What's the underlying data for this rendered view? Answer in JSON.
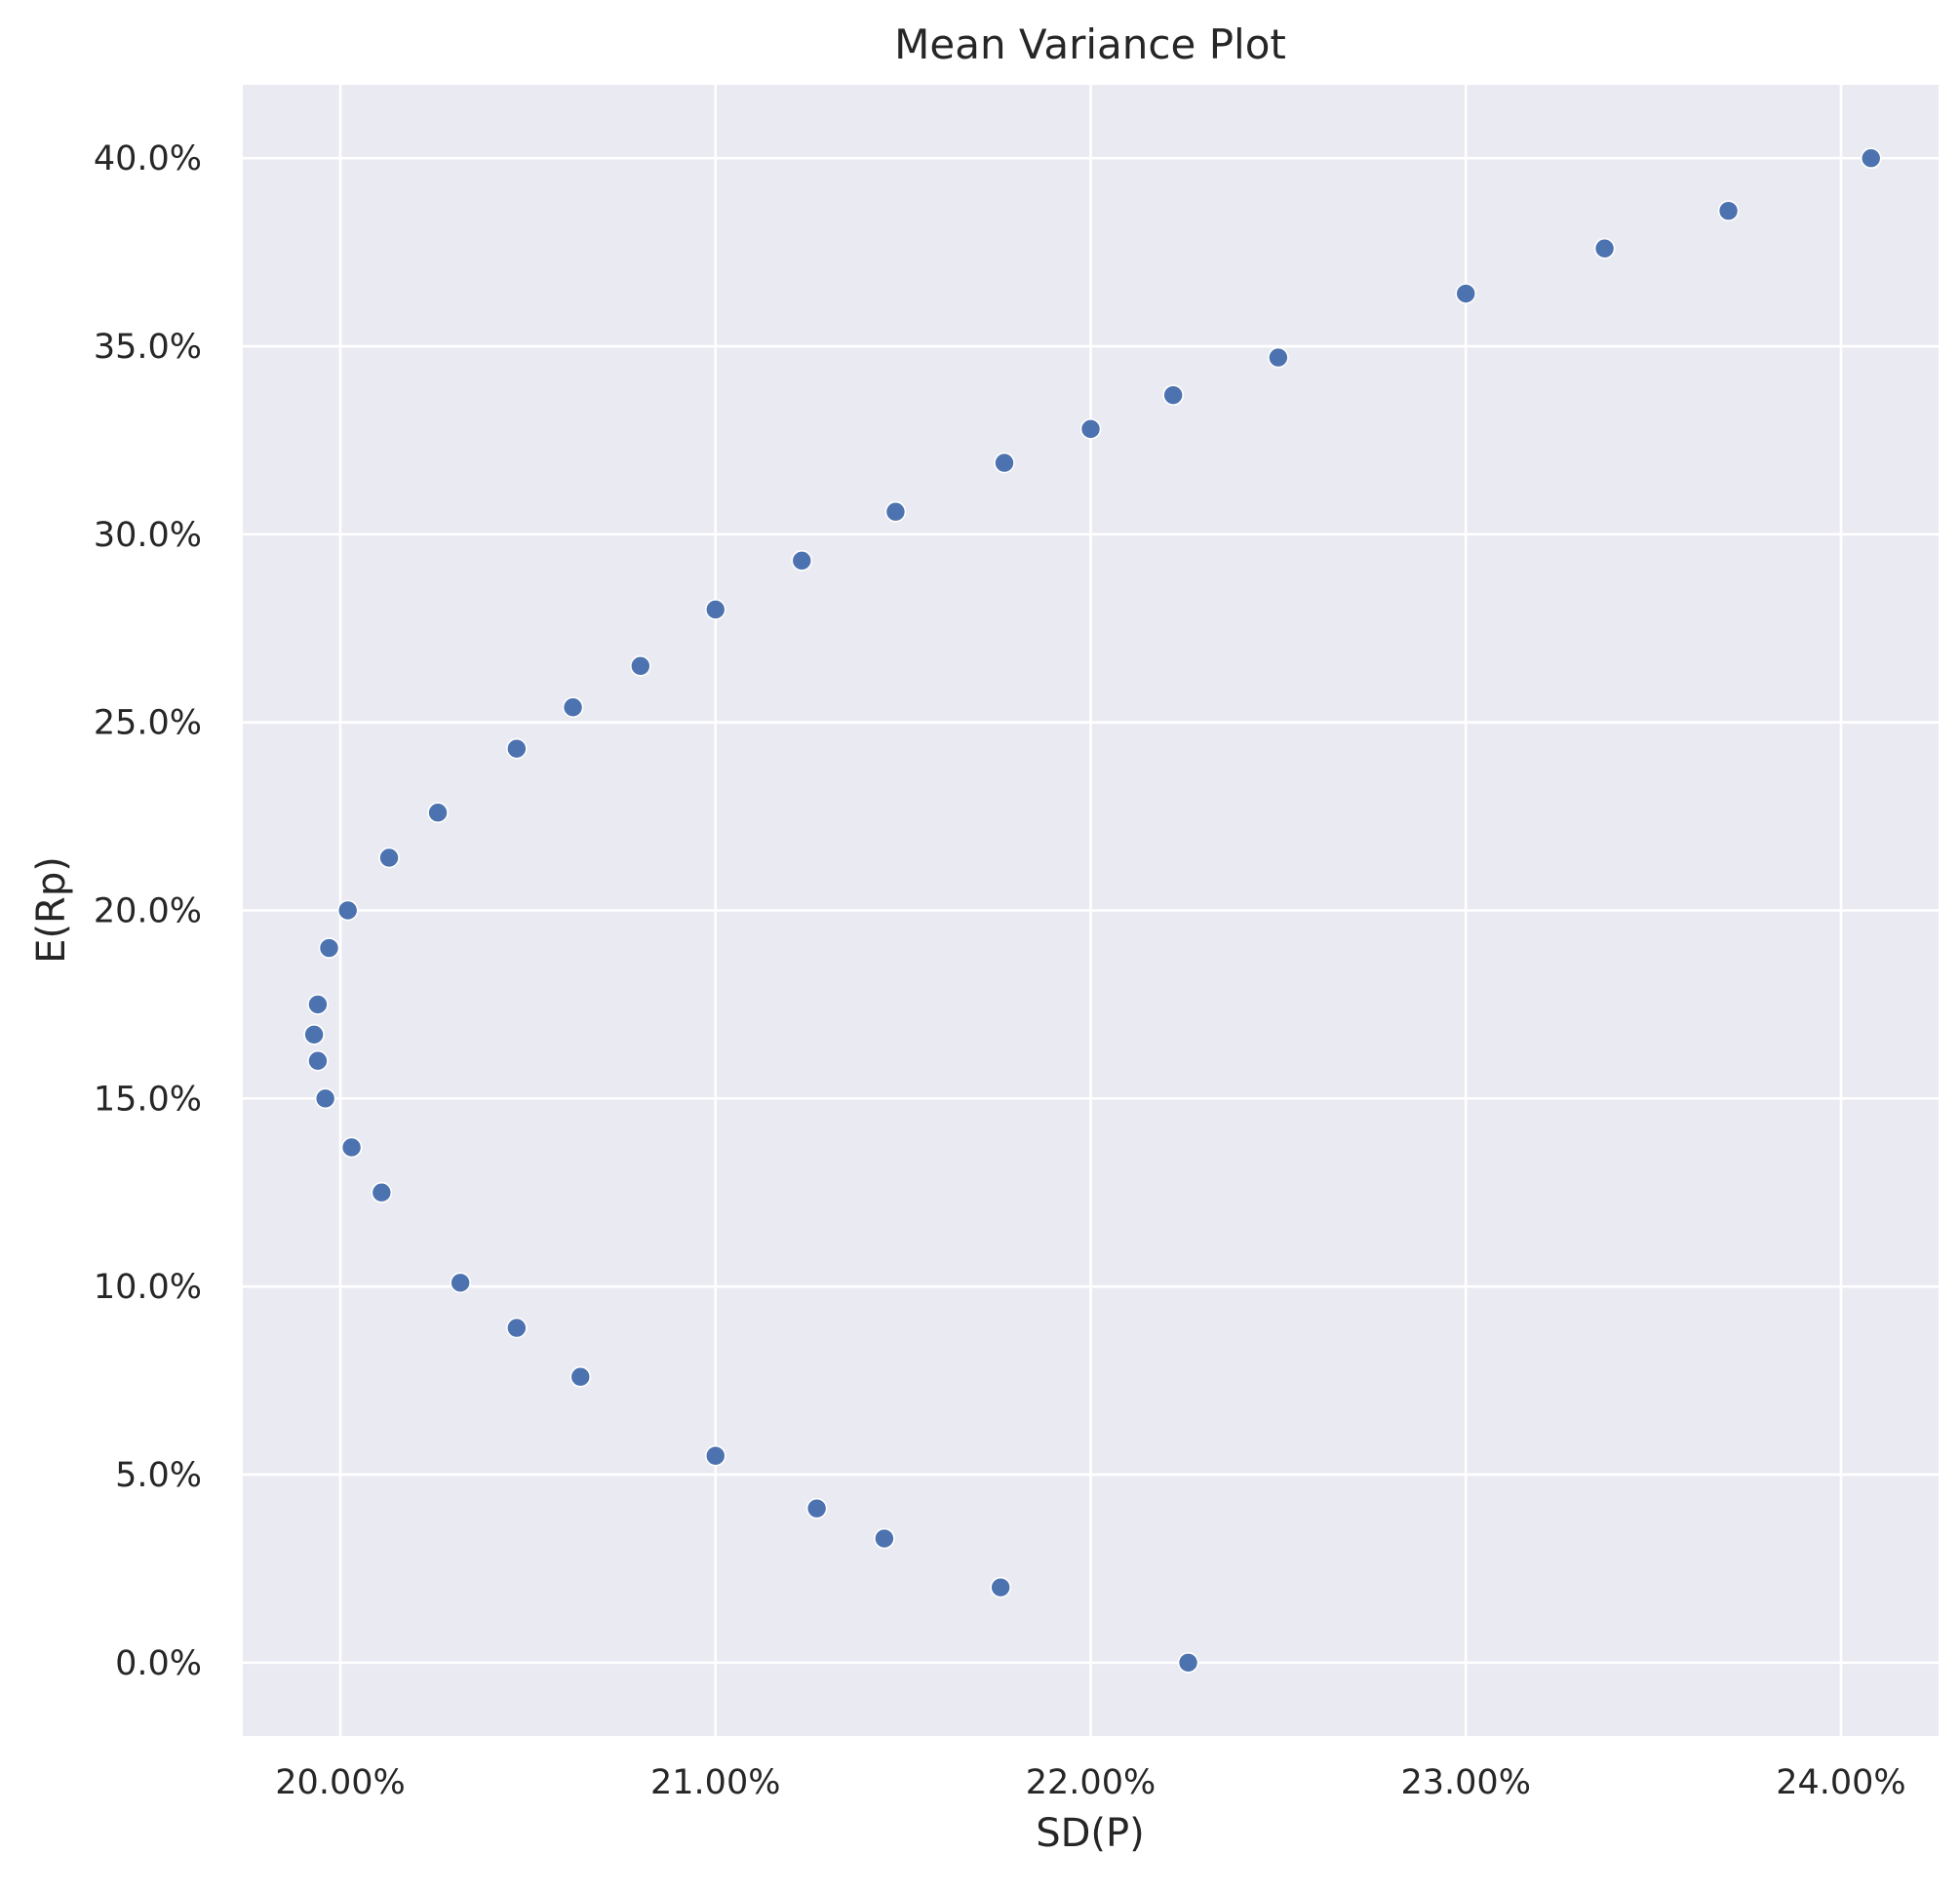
{
  "chart_data": {
    "type": "scatter",
    "title": "Mean Variance Plot",
    "xlabel": "SD(P)",
    "ylabel": "E(Rp)",
    "xlim": [
      0.1974,
      0.2426
    ],
    "ylim": [
      -0.0195,
      0.4195
    ],
    "grid": true,
    "background_color": "#EAEAF2",
    "marker_color": "#4C72B0",
    "x_ticks": [
      {
        "value": 0.2,
        "label": "20.00%"
      },
      {
        "value": 0.21,
        "label": "21.00%"
      },
      {
        "value": 0.22,
        "label": "22.00%"
      },
      {
        "value": 0.23,
        "label": "23.00%"
      },
      {
        "value": 0.24,
        "label": "24.00%"
      }
    ],
    "y_ticks": [
      {
        "value": 0.0,
        "label": "0.0%"
      },
      {
        "value": 0.05,
        "label": "5.0%"
      },
      {
        "value": 0.1,
        "label": "10.0%"
      },
      {
        "value": 0.15,
        "label": "15.0%"
      },
      {
        "value": 0.2,
        "label": "20.0%"
      },
      {
        "value": 0.25,
        "label": "25.0%"
      },
      {
        "value": 0.3,
        "label": "30.0%"
      },
      {
        "value": 0.35,
        "label": "35.0%"
      },
      {
        "value": 0.4,
        "label": "40.0%"
      }
    ],
    "series": [
      {
        "points": [
          {
            "x": 0.2226,
            "y": 0.0
          },
          {
            "x": 0.2176,
            "y": 0.02
          },
          {
            "x": 0.2145,
            "y": 0.033
          },
          {
            "x": 0.2127,
            "y": 0.041
          },
          {
            "x": 0.21,
            "y": 0.055
          },
          {
            "x": 0.2064,
            "y": 0.076
          },
          {
            "x": 0.2047,
            "y": 0.089
          },
          {
            "x": 0.2032,
            "y": 0.101
          },
          {
            "x": 0.2011,
            "y": 0.125
          },
          {
            "x": 0.2003,
            "y": 0.137
          },
          {
            "x": 0.1996,
            "y": 0.15
          },
          {
            "x": 0.1994,
            "y": 0.16
          },
          {
            "x": 0.1993,
            "y": 0.167
          },
          {
            "x": 0.1994,
            "y": 0.175
          },
          {
            "x": 0.1997,
            "y": 0.19
          },
          {
            "x": 0.2002,
            "y": 0.2
          },
          {
            "x": 0.2013,
            "y": 0.214
          },
          {
            "x": 0.2026,
            "y": 0.226
          },
          {
            "x": 0.2047,
            "y": 0.243
          },
          {
            "x": 0.2062,
            "y": 0.254
          },
          {
            "x": 0.208,
            "y": 0.265
          },
          {
            "x": 0.21,
            "y": 0.28
          },
          {
            "x": 0.2123,
            "y": 0.293
          },
          {
            "x": 0.2148,
            "y": 0.306
          },
          {
            "x": 0.2177,
            "y": 0.319
          },
          {
            "x": 0.22,
            "y": 0.328
          },
          {
            "x": 0.2222,
            "y": 0.337
          },
          {
            "x": 0.225,
            "y": 0.347
          },
          {
            "x": 0.23,
            "y": 0.364
          },
          {
            "x": 0.2337,
            "y": 0.376
          },
          {
            "x": 0.237,
            "y": 0.386
          },
          {
            "x": 0.2408,
            "y": 0.4
          }
        ]
      }
    ]
  }
}
